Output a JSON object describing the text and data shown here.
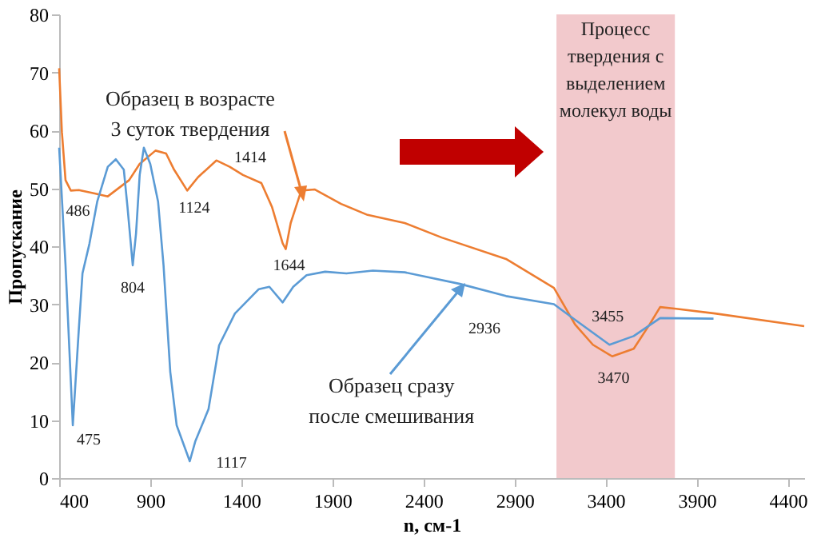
{
  "chart_data": {
    "type": "line",
    "xlabel": "n, см-1",
    "ylabel": "Пропускание",
    "xlim": [
      400,
      4490
    ],
    "ylim": [
      0,
      80
    ],
    "xticks": [
      400,
      900,
      1400,
      1900,
      2400,
      2900,
      3400,
      3900,
      4400
    ],
    "yticks": [
      0,
      10,
      20,
      30,
      40,
      50,
      60,
      70,
      80
    ],
    "marker": "none",
    "line_style": "solid",
    "series": [
      {
        "color": "#ed7d31",
        "x": [
          400,
          415,
          435,
          464,
          508,
          595,
          667,
          784,
          842,
          929,
          987,
          1031,
          1103,
          1162,
          1263,
          1336,
          1409,
          1510,
          1568,
          1627,
          1644,
          1671,
          1729,
          1802,
          1948,
          2093,
          2297,
          2500,
          2853,
          3116,
          3232,
          3330,
          3436,
          3554,
          3641,
          3699,
          3787,
          4000,
          4490
        ],
        "values": [
          70.7,
          59.7,
          51.4,
          49.6,
          49.7,
          49.1,
          48.6,
          51.4,
          54.2,
          56.5,
          56,
          53.2,
          49.6,
          51.9,
          54.8,
          53.7,
          52.3,
          50.9,
          46.8,
          40.5,
          39.5,
          44,
          49.6,
          49.8,
          47.3,
          45.4,
          44,
          41.5,
          37.8,
          32.8,
          26.5,
          23,
          21,
          22.3,
          26.5,
          29.5,
          29.2,
          28.4,
          26.2
        ]
      },
      {
        "color": "#5b9bd5",
        "x": [
          400,
          435,
          475,
          508,
          528,
          566,
          609,
          667,
          711,
          755,
          775,
          804,
          822,
          842,
          865,
          900,
          943,
          973,
          1010,
          1045,
          1117,
          1147,
          1220,
          1278,
          1365,
          1496,
          1554,
          1627,
          1685,
          1758,
          1860,
          1977,
          2122,
          2297,
          2600,
          2853,
          3116,
          3232,
          3421,
          3554,
          3699,
          3992
        ],
        "values": [
          57,
          36.7,
          9.1,
          25.7,
          35.3,
          40.4,
          47.7,
          53.7,
          55,
          53.2,
          46.8,
          36.7,
          42.2,
          52.3,
          57,
          54.2,
          47.7,
          36.7,
          18.3,
          9.1,
          2.9,
          6.3,
          11.9,
          22.9,
          28.4,
          32.6,
          33,
          30.3,
          33,
          35,
          35.6,
          35.3,
          35.8,
          35.5,
          33.5,
          31.4,
          30,
          27.3,
          23,
          24.5,
          27.6,
          27.5
        ]
      }
    ],
    "bands": [
      {
        "axis": "x",
        "from": 3130,
        "to": 3780,
        "color": "#f2c9cc",
        "label": "Процесс\nтвердения с\nвыделением\nмолекул воды"
      }
    ],
    "annotations": [
      {
        "text": "Образец в возрасте\n3 суток твердения",
        "x": 1760,
        "y": 49.6
      },
      {
        "text": "Образец сразу\nпосле смешивания",
        "x": 2637,
        "y": 33.2
      },
      {
        "text": "486",
        "x": 486,
        "y": 49.6
      },
      {
        "text": "804",
        "x": 804,
        "y": 36.7
      },
      {
        "text": "1124",
        "x": 1124,
        "y": 49.6
      },
      {
        "text": "1414",
        "x": 1414,
        "y": 52.3
      },
      {
        "text": "1644",
        "x": 1644,
        "y": 39.5
      },
      {
        "text": "475",
        "x": 475,
        "y": 9.1
      },
      {
        "text": "1117",
        "x": 1117,
        "y": 2.9
      },
      {
        "text": "2936",
        "x": 2936,
        "y": 31
      },
      {
        "text": "3455",
        "x": 3455,
        "y": 23.2
      },
      {
        "text": "3470",
        "x": 3470,
        "y": 21.1
      }
    ]
  }
}
